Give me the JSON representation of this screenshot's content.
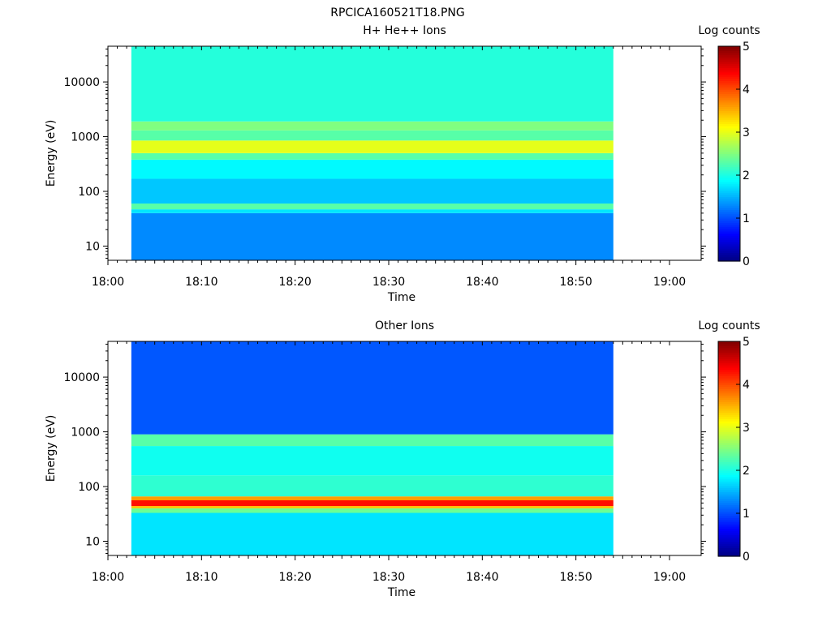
{
  "page": {
    "title": "RPCICA160521T18.PNG"
  },
  "chart_data": [
    {
      "type": "heatmap",
      "title": "H+ He++ Ions",
      "xlabel": "Time",
      "ylabel": "Energy (eV)",
      "y_scale": "log",
      "x_ticks": [
        "18:00",
        "18:10",
        "18:20",
        "18:30",
        "18:40",
        "18:50",
        "19:00"
      ],
      "y_ticks": [
        "10",
        "100",
        "1000",
        "10000"
      ],
      "x_range": [
        "18:00",
        "19:03"
      ],
      "y_range": [
        5.5,
        45000
      ],
      "data_time_range": [
        "18:02:30",
        "18:54"
      ],
      "colorbar": {
        "label": "Log counts",
        "range": [
          0,
          5
        ],
        "ticks": [
          "0",
          "1",
          "2",
          "3",
          "4",
          "5"
        ]
      },
      "bands": [
        {
          "energy_eV": [
            5.5,
            40
          ],
          "log_counts": 1.3
        },
        {
          "energy_eV": [
            40,
            47
          ],
          "log_counts": 1.75
        },
        {
          "energy_eV": [
            47,
            60
          ],
          "log_counts": 2.3
        },
        {
          "energy_eV": [
            60,
            170
          ],
          "log_counts": 1.6
        },
        {
          "energy_eV": [
            170,
            380
          ],
          "log_counts": 1.85
        },
        {
          "energy_eV": [
            380,
            500
          ],
          "log_counts": 2.3
        },
        {
          "energy_eV": [
            500,
            850
          ],
          "log_counts": 3.0
        },
        {
          "energy_eV": [
            850,
            1300
          ],
          "log_counts": 2.3
        },
        {
          "energy_eV": [
            1300,
            1900
          ],
          "log_counts": 2.5
        },
        {
          "energy_eV": [
            1900,
            45000
          ],
          "log_counts": 2.05
        }
      ]
    },
    {
      "type": "heatmap",
      "title": "Other Ions",
      "xlabel": "Time",
      "ylabel": "Energy (eV)",
      "y_scale": "log",
      "x_ticks": [
        "18:00",
        "18:10",
        "18:20",
        "18:30",
        "18:40",
        "18:50",
        "19:00"
      ],
      "y_ticks": [
        "10",
        "100",
        "1000",
        "10000"
      ],
      "x_range": [
        "18:00",
        "19:03"
      ],
      "y_range": [
        5.5,
        45000
      ],
      "data_time_range": [
        "18:02:30",
        "18:54"
      ],
      "colorbar": {
        "label": "Log counts",
        "range": [
          0,
          5
        ],
        "ticks": [
          "0",
          "1",
          "2",
          "3",
          "4",
          "5"
        ]
      },
      "bands": [
        {
          "energy_eV": [
            5.5,
            33
          ],
          "log_counts": 1.75
        },
        {
          "energy_eV": [
            33,
            40
          ],
          "log_counts": 2.4
        },
        {
          "energy_eV": [
            40,
            44
          ],
          "log_counts": 3.4
        },
        {
          "energy_eV": [
            44,
            56
          ],
          "log_counts": 4.3
        },
        {
          "energy_eV": [
            56,
            66
          ],
          "log_counts": 3.6
        },
        {
          "energy_eV": [
            66,
            160
          ],
          "log_counts": 2.1
        },
        {
          "energy_eV": [
            160,
            550
          ],
          "log_counts": 1.95
        },
        {
          "energy_eV": [
            550,
            900
          ],
          "log_counts": 2.3
        },
        {
          "energy_eV": [
            900,
            45000
          ],
          "log_counts": 1.05
        }
      ]
    }
  ]
}
